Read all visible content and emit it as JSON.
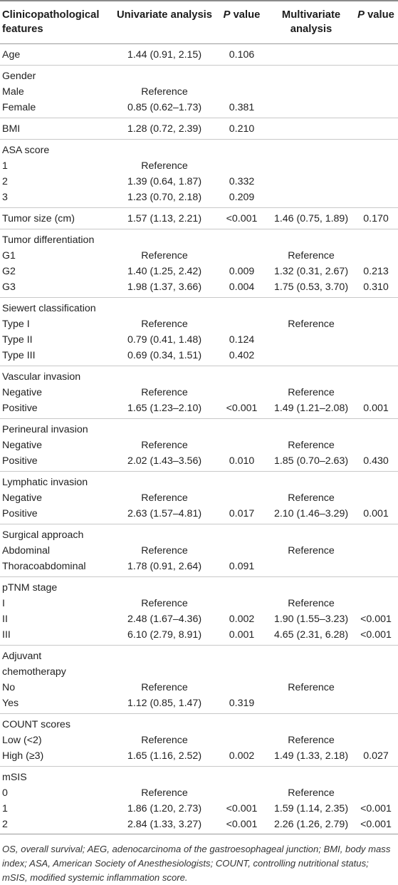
{
  "header": {
    "col1": "Clinicopathological features",
    "col2": "Univariate analysis",
    "col3_p": "P",
    "col3_rest": " value",
    "col4": "Multivariate analysis",
    "col5_p": "P",
    "col5_rest": " value"
  },
  "groups": [
    {
      "rows": [
        {
          "label": "Age",
          "uni": "1.44 (0.91, 2.15)",
          "p1": "0.106",
          "multi": "",
          "p2": ""
        }
      ]
    },
    {
      "rows": [
        {
          "label": "Gender",
          "uni": "",
          "p1": "",
          "multi": "",
          "p2": ""
        },
        {
          "label": "Male",
          "uni": "Reference",
          "p1": "",
          "multi": "",
          "p2": ""
        },
        {
          "label": "Female",
          "uni": "0.85 (0.62–1.73)",
          "p1": "0.381",
          "multi": "",
          "p2": ""
        }
      ]
    },
    {
      "rows": [
        {
          "label": "BMI",
          "uni": "1.28 (0.72, 2.39)",
          "p1": "0.210",
          "multi": "",
          "p2": ""
        }
      ]
    },
    {
      "rows": [
        {
          "label": "ASA score",
          "uni": "",
          "p1": "",
          "multi": "",
          "p2": ""
        },
        {
          "label": "1",
          "uni": "Reference",
          "p1": "",
          "multi": "",
          "p2": ""
        },
        {
          "label": "2",
          "uni": "1.39 (0.64, 1.87)",
          "p1": "0.332",
          "multi": "",
          "p2": ""
        },
        {
          "label": "3",
          "uni": "1.23 (0.70, 2.18)",
          "p1": "0.209",
          "multi": "",
          "p2": ""
        }
      ]
    },
    {
      "rows": [
        {
          "label": "Tumor size (cm)",
          "uni": "1.57 (1.13, 2.21)",
          "p1": "<0.001",
          "multi": "1.46 (0.75, 1.89)",
          "p2": "0.170"
        }
      ]
    },
    {
      "rows": [
        {
          "label": "Tumor differentiation",
          "uni": "",
          "p1": "",
          "multi": "",
          "p2": ""
        },
        {
          "label": "G1",
          "uni": "Reference",
          "p1": "",
          "multi": "Reference",
          "p2": ""
        },
        {
          "label": "G2",
          "uni": "1.40 (1.25, 2.42)",
          "p1": "0.009",
          "multi": "1.32 (0.31, 2.67)",
          "p2": "0.213"
        },
        {
          "label": "G3",
          "uni": "1.98 (1.37, 3.66)",
          "p1": "0.004",
          "multi": "1.75 (0.53, 3.70)",
          "p2": "0.310"
        }
      ]
    },
    {
      "rows": [
        {
          "label": "Siewert classification",
          "uni": "",
          "p1": "",
          "multi": "",
          "p2": ""
        },
        {
          "label": "Type I",
          "uni": "Reference",
          "p1": "",
          "multi": "Reference",
          "p2": ""
        },
        {
          "label": "Type II",
          "uni": "0.79 (0.41, 1.48)",
          "p1": "0.124",
          "multi": "",
          "p2": ""
        },
        {
          "label": "Type III",
          "uni": "0.69 (0.34, 1.51)",
          "p1": "0.402",
          "multi": "",
          "p2": ""
        }
      ]
    },
    {
      "rows": [
        {
          "label": "Vascular invasion",
          "uni": "",
          "p1": "",
          "multi": "",
          "p2": ""
        },
        {
          "label": "Negative",
          "uni": "Reference",
          "p1": "",
          "multi": "Reference",
          "p2": ""
        },
        {
          "label": "Positive",
          "uni": "1.65 (1.23–2.10)",
          "p1": "<0.001",
          "multi": "1.49 (1.21–2.08)",
          "p2": "0.001"
        }
      ]
    },
    {
      "rows": [
        {
          "label": "Perineural invasion",
          "uni": "",
          "p1": "",
          "multi": "",
          "p2": ""
        },
        {
          "label": "Negative",
          "uni": "Reference",
          "p1": "",
          "multi": "Reference",
          "p2": ""
        },
        {
          "label": "Positive",
          "uni": "2.02 (1.43–3.56)",
          "p1": "0.010",
          "multi": "1.85 (0.70–2.63)",
          "p2": "0.430"
        }
      ]
    },
    {
      "rows": [
        {
          "label": "Lymphatic invasion",
          "uni": "",
          "p1": "",
          "multi": "",
          "p2": ""
        },
        {
          "label": "Negative",
          "uni": "Reference",
          "p1": "",
          "multi": "Reference",
          "p2": ""
        },
        {
          "label": "Positive",
          "uni": "2.63 (1.57–4.81)",
          "p1": "0.017",
          "multi": "2.10 (1.46–3.29)",
          "p2": "0.001"
        }
      ]
    },
    {
      "rows": [
        {
          "label": "Surgical approach",
          "uni": "",
          "p1": "",
          "multi": "",
          "p2": ""
        },
        {
          "label": "Abdominal",
          "uni": "Reference",
          "p1": "",
          "multi": "Reference",
          "p2": ""
        },
        {
          "label": "Thoracoabdominal",
          "uni": "1.78 (0.91, 2.64)",
          "p1": "0.091",
          "multi": "",
          "p2": ""
        }
      ]
    },
    {
      "rows": [
        {
          "label": "pTNM stage",
          "uni": "",
          "p1": "",
          "multi": "",
          "p2": ""
        },
        {
          "label": "I",
          "uni": "Reference",
          "p1": "",
          "multi": "Reference",
          "p2": ""
        },
        {
          "label": "II",
          "uni": "2.48 (1.67–4.36)",
          "p1": "0.002",
          "multi": "1.90 (1.55–3.23)",
          "p2": "<0.001"
        },
        {
          "label": "III",
          "uni": "6.10 (2.79, 8.91)",
          "p1": "0.001",
          "multi": "4.65 (2.31, 6.28)",
          "p2": "<0.001"
        }
      ]
    },
    {
      "rows": [
        {
          "label": "Adjuvant",
          "uni": "",
          "p1": "",
          "multi": "",
          "p2": ""
        },
        {
          "label": "chemotherapy",
          "uni": "",
          "p1": "",
          "multi": "",
          "p2": ""
        },
        {
          "label": "No",
          "uni": "Reference",
          "p1": "",
          "multi": "Reference",
          "p2": ""
        },
        {
          "label": "Yes",
          "uni": "1.12 (0.85, 1.47)",
          "p1": "0.319",
          "multi": "",
          "p2": ""
        }
      ]
    },
    {
      "rows": [
        {
          "label": "COUNT scores",
          "uni": "",
          "p1": "",
          "multi": "",
          "p2": ""
        },
        {
          "label": "Low (<2)",
          "uni": "Reference",
          "p1": "",
          "multi": "Reference",
          "p2": ""
        },
        {
          "label": "High (≥3)",
          "uni": "1.65 (1.16, 2.52)",
          "p1": "0.002",
          "multi": "1.49 (1.33, 2.18)",
          "p2": "0.027"
        }
      ]
    },
    {
      "rows": [
        {
          "label": "mSIS",
          "uni": "",
          "p1": "",
          "multi": "",
          "p2": ""
        },
        {
          "label": "0",
          "uni": "Reference",
          "p1": "",
          "multi": "Reference",
          "p2": ""
        },
        {
          "label": "1",
          "uni": "1.86 (1.20, 2.73)",
          "p1": "<0.001",
          "multi": "1.59 (1.14, 2.35)",
          "p2": "<0.001"
        },
        {
          "label": "2",
          "uni": "2.84 (1.33, 3.27)",
          "p1": "<0.001",
          "multi": "2.26 (1.26, 2.79)",
          "p2": "<0.001"
        }
      ]
    }
  ],
  "footnote": "OS, overall survival; AEG, adenocarcinoma of the gastroesophageal junction; BMI, body mass index; ASA, American Society of Anesthesiologists; COUNT, controlling nutritional status; mSIS, modified systemic inflammation score."
}
